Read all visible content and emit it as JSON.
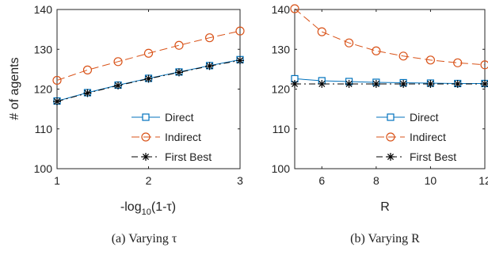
{
  "chart_data": [
    {
      "type": "line",
      "xlabel": "-log",
      "xlabel_sub": "10",
      "xlabel_tail": "(1-τ)",
      "ylabel": "# of agents",
      "xlim": [
        1,
        3
      ],
      "ylim": [
        100,
        140
      ],
      "xticks": [
        "1",
        "2",
        "3"
      ],
      "yticks": [
        "100",
        "110",
        "120",
        "130",
        "140"
      ],
      "x": [
        1.0,
        1.333,
        1.667,
        2.0,
        2.333,
        2.667,
        3.0
      ],
      "series": [
        {
          "name": "Direct",
          "color": "#0072BD",
          "marker": "square",
          "dash": "solid",
          "values": [
            117.0,
            119.1,
            121.0,
            122.7,
            124.3,
            125.9,
            127.4
          ]
        },
        {
          "name": "Indirect",
          "color": "#D95319",
          "marker": "circle",
          "dash": "dashed",
          "values": [
            122.2,
            124.8,
            126.9,
            129.0,
            131.0,
            132.9,
            134.6
          ]
        },
        {
          "name": "First Best",
          "color": "#000000",
          "marker": "star",
          "dash": "dashdot",
          "values": [
            116.9,
            119.0,
            120.9,
            122.6,
            124.2,
            125.8,
            127.2
          ]
        }
      ],
      "legend": "bottom-right",
      "caption": "(a) Varying τ"
    },
    {
      "type": "line",
      "xlabel": "R",
      "ylabel": "",
      "xlim": [
        5,
        12
      ],
      "ylim": [
        100,
        140
      ],
      "xticks": [
        "6",
        "8",
        "10",
        "12"
      ],
      "yticks": [
        "100",
        "110",
        "120",
        "130",
        "140"
      ],
      "x": [
        5,
        6,
        7,
        8,
        9,
        10,
        11,
        12
      ],
      "series": [
        {
          "name": "Direct",
          "color": "#0072BD",
          "marker": "square",
          "dash": "solid",
          "values": [
            122.6,
            122.1,
            121.9,
            121.7,
            121.6,
            121.5,
            121.4,
            121.4
          ]
        },
        {
          "name": "Indirect",
          "color": "#D95319",
          "marker": "circle",
          "dash": "dashed",
          "values": [
            140.2,
            134.4,
            131.6,
            129.6,
            128.3,
            127.3,
            126.6,
            126.1
          ]
        },
        {
          "name": "First Best",
          "color": "#000000",
          "marker": "star",
          "dash": "dashdot",
          "values": [
            121.3,
            121.3,
            121.3,
            121.3,
            121.3,
            121.3,
            121.3,
            121.3
          ]
        }
      ],
      "legend": "bottom-right",
      "caption": "(b) Varying R"
    }
  ]
}
